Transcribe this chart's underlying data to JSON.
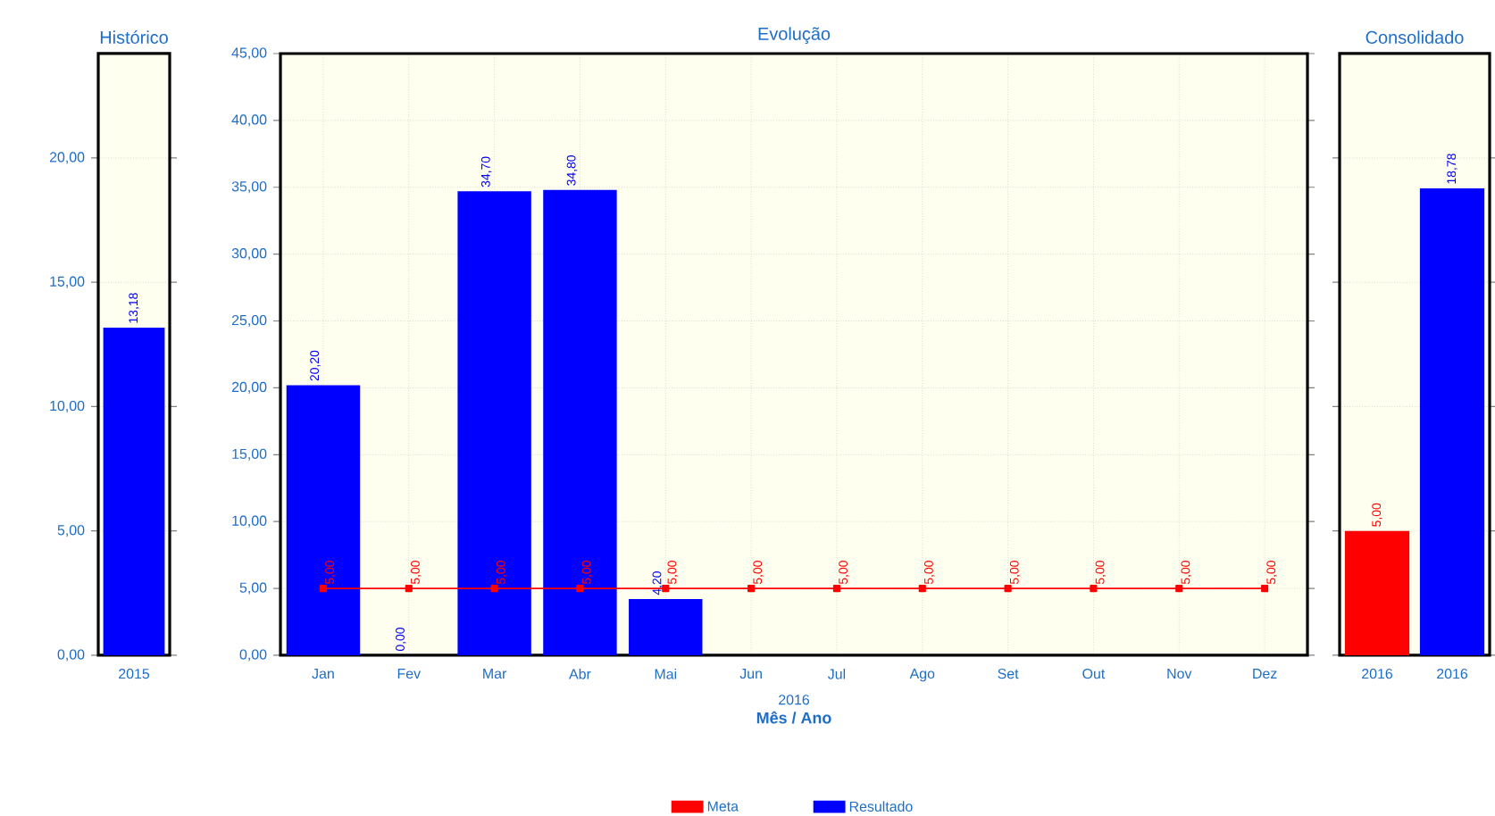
{
  "chart_data": [
    {
      "type": "bar",
      "title": "Histórico",
      "categories": [
        "2015"
      ],
      "values": [
        13.18
      ],
      "color": "#0000ff",
      "value_labels": [
        "13,18"
      ],
      "ylim": [
        0,
        24.2
      ],
      "yticks": [
        {
          "value": 0,
          "label": "0,00"
        },
        {
          "value": 5,
          "label": "5,00"
        },
        {
          "value": 10,
          "label": "10,00"
        },
        {
          "value": 15,
          "label": "15,00"
        },
        {
          "value": 20,
          "label": "20,00"
        }
      ],
      "grid": "y"
    },
    {
      "type": "bar",
      "title": "Evolução",
      "xlabel": "Mês / Ano",
      "annotations": [
        "2016"
      ],
      "categories": [
        "Jan",
        "Fev",
        "Mar",
        "Abr",
        "Mai",
        "Jun",
        "Jul",
        "Ago",
        "Set",
        "Out",
        "Nov",
        "Dez"
      ],
      "series": [
        {
          "name": "Meta",
          "type": "line",
          "color": "#ff0000",
          "marker": "square",
          "values": [
            5,
            5,
            5,
            5,
            5,
            5,
            5,
            5,
            5,
            5,
            5,
            5
          ],
          "value_labels": [
            "5,00",
            "5,00",
            "5,00",
            "5,00",
            "5,00",
            "5,00",
            "5,00",
            "5,00",
            "5,00",
            "5,00",
            "5,00",
            "5,00"
          ]
        },
        {
          "name": "Resultado",
          "type": "bar",
          "color": "#0000ff",
          "values": [
            20.2,
            0,
            34.7,
            34.8,
            4.2,
            null,
            null,
            null,
            null,
            null,
            null,
            null
          ],
          "value_labels": [
            "20,20",
            "0,00",
            "34,70",
            "34,80",
            "4,20",
            null,
            null,
            null,
            null,
            null,
            null,
            null
          ]
        }
      ],
      "ylim": [
        0,
        45
      ],
      "yticks": [
        {
          "value": 0,
          "label": "0,00"
        },
        {
          "value": 5,
          "label": "5,00"
        },
        {
          "value": 10,
          "label": "10,00"
        },
        {
          "value": 15,
          "label": "15,00"
        },
        {
          "value": 20,
          "label": "20,00"
        },
        {
          "value": 25,
          "label": "25,00"
        },
        {
          "value": 30,
          "label": "30,00"
        },
        {
          "value": 35,
          "label": "35,00"
        },
        {
          "value": 40,
          "label": "40,00"
        },
        {
          "value": 45,
          "label": "45,00"
        }
      ],
      "grid": true,
      "legend": "bottom"
    },
    {
      "type": "bar",
      "title": "Consolidado",
      "categories": [
        "2016",
        "2016"
      ],
      "values": [
        5,
        18.78
      ],
      "colors": [
        "#ff0000",
        "#0000ff"
      ],
      "value_labels": [
        "5,00",
        "18,78"
      ],
      "ylim": [
        0,
        24.2
      ],
      "yticks": [
        {
          "value": 0,
          "label": null
        },
        {
          "value": 5,
          "label": null
        },
        {
          "value": 10,
          "label": null
        },
        {
          "value": 15,
          "label": null
        },
        {
          "value": 20,
          "label": null
        }
      ],
      "grid": "y",
      "tick_labels": "x"
    }
  ]
}
